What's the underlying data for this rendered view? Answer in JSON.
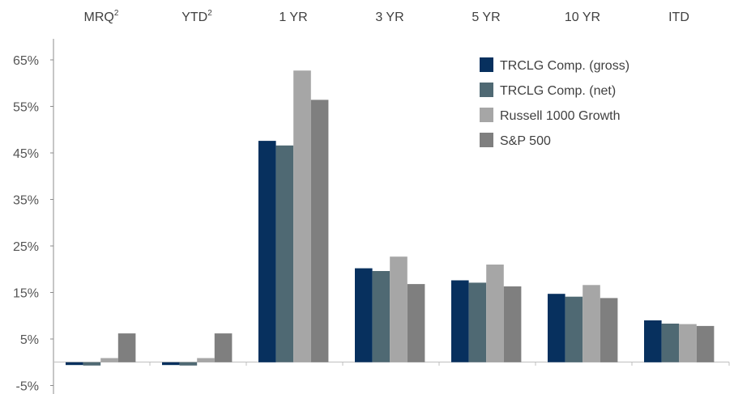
{
  "chart_data": {
    "type": "bar",
    "categories": [
      "MRQ",
      "YTD",
      "1 YR",
      "3 YR",
      "5 YR",
      "10 YR",
      "ITD"
    ],
    "category_superscripts": [
      "2",
      "2",
      "",
      "",
      "",
      "",
      ""
    ],
    "y_ticks": [
      "65%",
      "55%",
      "45%",
      "35%",
      "25%",
      "15%",
      "5%",
      "-5%"
    ],
    "ylim": [
      -5,
      70
    ],
    "legend_position": "top-right",
    "grid": false,
    "series": [
      {
        "name": "TRCLG Comp. (gross)",
        "color": "#07305e",
        "values": [
          -0.6,
          -0.6,
          47.6,
          20.2,
          17.6,
          14.7,
          9.0
        ]
      },
      {
        "name": "TRCLG Comp. (net)",
        "color": "#4f6973",
        "values": [
          -0.7,
          -0.7,
          46.6,
          19.6,
          17.1,
          14.1,
          8.3
        ]
      },
      {
        "name": "Russell 1000 Growth",
        "color": "#a6a6a6",
        "values": [
          0.9,
          0.9,
          62.7,
          22.7,
          21.0,
          16.6,
          8.2
        ]
      },
      {
        "name": "S&P 500",
        "color": "#7f7f7f",
        "values": [
          6.2,
          6.2,
          56.4,
          16.8,
          16.3,
          13.8,
          7.8
        ]
      }
    ]
  }
}
